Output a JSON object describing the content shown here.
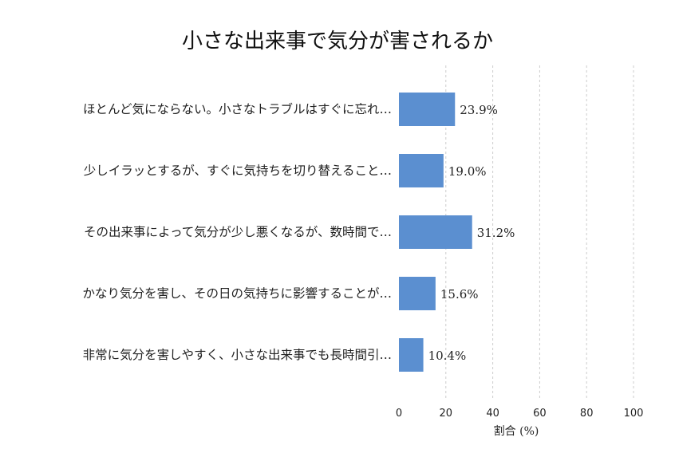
{
  "chart_data": {
    "type": "bar",
    "orientation": "horizontal",
    "title": "小さな出来事で気分が害されるか",
    "xlabel": "割合 (%)",
    "ylabel": "",
    "categories": [
      "ほとんど気にならない。小さなトラブルはすぐに忘れ…",
      "少しイラッとするが、すぐに気持ちを切り替えること…",
      "その出来事によって気分が少し悪くなるが、数時間で…",
      "かなり気分を害し、その日の気持ちに影響することが…",
      "非常に気分を害しやすく、小さな出来事でも長時間引…"
    ],
    "values": [
      23.9,
      19.0,
      31.2,
      15.6,
      10.4
    ],
    "value_labels": [
      "23.9%",
      "19.0%",
      "31.2%",
      "15.6%",
      "10.4%"
    ],
    "xlim": [
      0,
      100
    ],
    "xticks": [
      0,
      20,
      40,
      60,
      80,
      100
    ],
    "bar_color": "#5b8fd0",
    "grid": true,
    "legend": "none"
  }
}
